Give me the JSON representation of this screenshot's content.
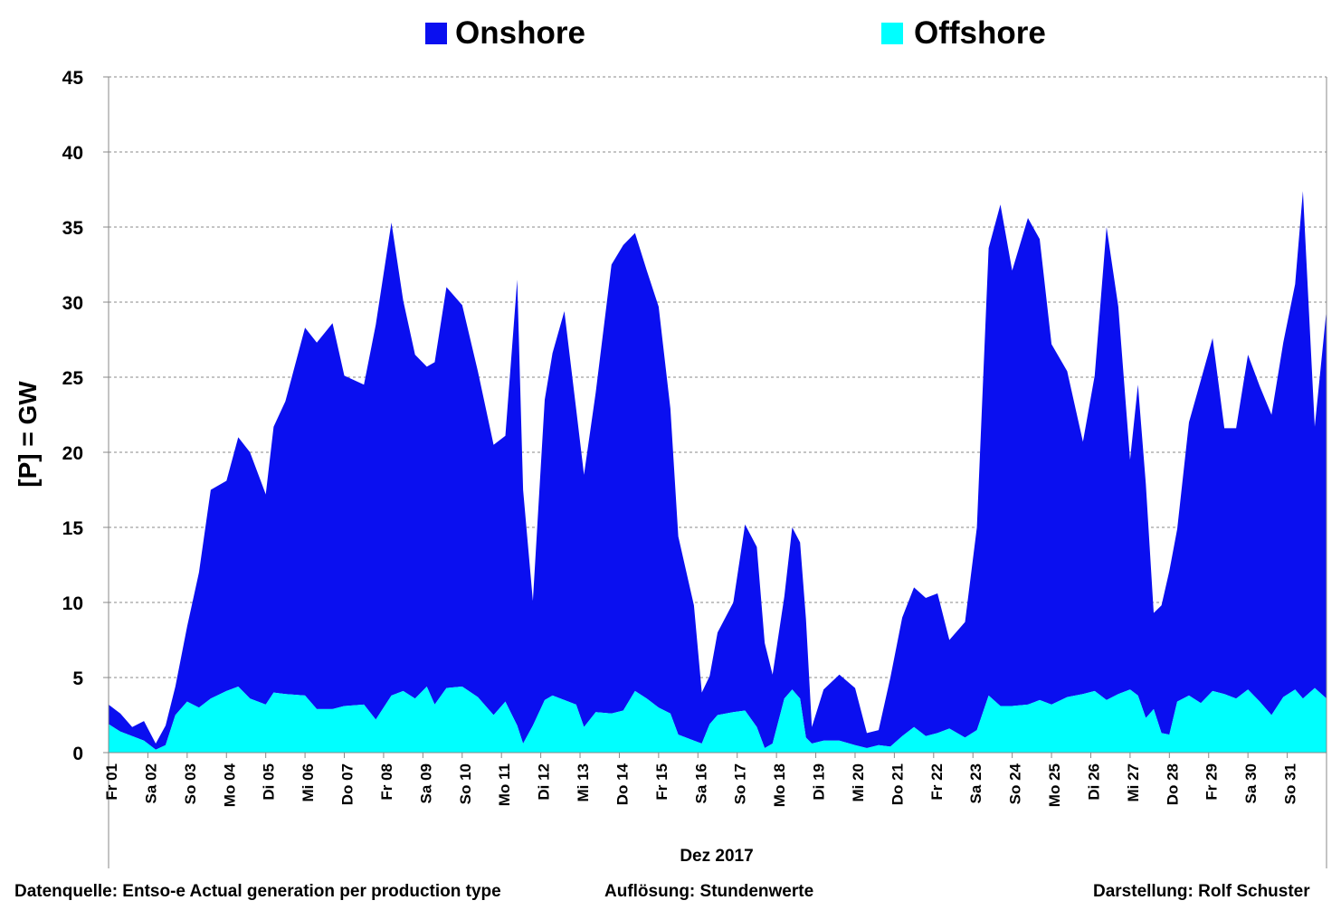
{
  "legend": [
    {
      "label": "Onshore",
      "color": "#0a0ff0"
    },
    {
      "label": "Offshore",
      "color": "#00ffff"
    }
  ],
  "axes": {
    "ylabel": "[P] = GW",
    "xlabel": "Dez 2017",
    "yticks": [
      "0",
      "5",
      "10",
      "15",
      "20",
      "25",
      "30",
      "35",
      "40",
      "45"
    ]
  },
  "footer": {
    "source": "Datenquelle: Entso-e  Actual generation per production type",
    "resolution": "Auflösung: Stundenwerte",
    "author": "Darstellung:  Rolf Schuster"
  },
  "chart_data": {
    "type": "area",
    "stacked": true,
    "x_unit": "days since 2017-12-01 00:00",
    "ylim": [
      0,
      45
    ],
    "xlim": [
      0,
      31
    ],
    "grid": "horizontal dashed",
    "legend_position": "top",
    "day_labels": [
      "Fr 01",
      "Sa 02",
      "So 03",
      "Mo 04",
      "Di 05",
      "Mi 06",
      "Do 07",
      "Fr 08",
      "Sa 09",
      "So 10",
      "Mo 11",
      "Di 12",
      "Mi 13",
      "Do 14",
      "Fr 15",
      "Sa 16",
      "So 17",
      "Mo 18",
      "Di 19",
      "Mi 20",
      "Do 21",
      "Fr 22",
      "Sa 23",
      "So 24",
      "Mo 25",
      "Di 26",
      "Mi 27",
      "Do 28",
      "Fr 29",
      "Sa 30",
      "So 31"
    ],
    "series": [
      {
        "name": "Offshore",
        "color": "#00ffff",
        "points": [
          [
            0,
            1.9
          ],
          [
            0.3,
            1.4
          ],
          [
            0.6,
            1.1
          ],
          [
            0.9,
            0.8
          ],
          [
            1.2,
            0.2
          ],
          [
            1.45,
            0.5
          ],
          [
            1.7,
            2.5
          ],
          [
            2.0,
            3.4
          ],
          [
            2.3,
            3.0
          ],
          [
            2.6,
            3.6
          ],
          [
            3.0,
            4.1
          ],
          [
            3.3,
            4.4
          ],
          [
            3.6,
            3.6
          ],
          [
            4.0,
            3.2
          ],
          [
            4.2,
            4.0
          ],
          [
            4.5,
            3.9
          ],
          [
            5.0,
            3.8
          ],
          [
            5.3,
            2.9
          ],
          [
            5.7,
            2.9
          ],
          [
            6.0,
            3.1
          ],
          [
            6.5,
            3.2
          ],
          [
            6.8,
            2.2
          ],
          [
            7.2,
            3.8
          ],
          [
            7.5,
            4.1
          ],
          [
            7.8,
            3.6
          ],
          [
            8.1,
            4.4
          ],
          [
            8.3,
            3.2
          ],
          [
            8.6,
            4.3
          ],
          [
            9.0,
            4.4
          ],
          [
            9.4,
            3.7
          ],
          [
            9.8,
            2.5
          ],
          [
            10.1,
            3.4
          ],
          [
            10.4,
            1.8
          ],
          [
            10.55,
            0.6
          ],
          [
            10.8,
            1.8
          ],
          [
            11.1,
            3.5
          ],
          [
            11.3,
            3.8
          ],
          [
            11.6,
            3.5
          ],
          [
            11.9,
            3.2
          ],
          [
            12.1,
            1.7
          ],
          [
            12.4,
            2.7
          ],
          [
            12.8,
            2.6
          ],
          [
            13.1,
            2.8
          ],
          [
            13.4,
            4.1
          ],
          [
            13.7,
            3.6
          ],
          [
            14.0,
            3.0
          ],
          [
            14.3,
            2.6
          ],
          [
            14.5,
            1.2
          ],
          [
            14.9,
            0.8
          ],
          [
            15.1,
            0.6
          ],
          [
            15.3,
            1.9
          ],
          [
            15.5,
            2.5
          ],
          [
            15.9,
            2.7
          ],
          [
            16.2,
            2.8
          ],
          [
            16.5,
            1.7
          ],
          [
            16.7,
            0.3
          ],
          [
            16.9,
            0.6
          ],
          [
            17.2,
            3.6
          ],
          [
            17.4,
            4.2
          ],
          [
            17.6,
            3.6
          ],
          [
            17.75,
            1.0
          ],
          [
            17.9,
            0.6
          ],
          [
            18.2,
            0.8
          ],
          [
            18.6,
            0.8
          ],
          [
            19.0,
            0.5
          ],
          [
            19.3,
            0.3
          ],
          [
            19.6,
            0.5
          ],
          [
            19.9,
            0.4
          ],
          [
            20.2,
            1.1
          ],
          [
            20.5,
            1.7
          ],
          [
            20.8,
            1.1
          ],
          [
            21.1,
            1.3
          ],
          [
            21.4,
            1.6
          ],
          [
            21.8,
            1.0
          ],
          [
            22.1,
            1.5
          ],
          [
            22.4,
            3.8
          ],
          [
            22.7,
            3.1
          ],
          [
            23.0,
            3.1
          ],
          [
            23.4,
            3.2
          ],
          [
            23.7,
            3.5
          ],
          [
            24.0,
            3.2
          ],
          [
            24.4,
            3.7
          ],
          [
            24.8,
            3.9
          ],
          [
            25.1,
            4.1
          ],
          [
            25.4,
            3.5
          ],
          [
            25.7,
            3.9
          ],
          [
            26.0,
            4.2
          ],
          [
            26.2,
            3.8
          ],
          [
            26.4,
            2.3
          ],
          [
            26.6,
            2.9
          ],
          [
            26.8,
            1.3
          ],
          [
            27.0,
            1.2
          ],
          [
            27.2,
            3.4
          ],
          [
            27.5,
            3.8
          ],
          [
            27.8,
            3.3
          ],
          [
            28.1,
            4.1
          ],
          [
            28.4,
            3.9
          ],
          [
            28.7,
            3.6
          ],
          [
            29.0,
            4.2
          ],
          [
            29.3,
            3.4
          ],
          [
            29.6,
            2.5
          ],
          [
            29.9,
            3.7
          ],
          [
            30.2,
            4.2
          ],
          [
            30.4,
            3.6
          ],
          [
            30.7,
            4.3
          ],
          [
            31.0,
            3.6
          ]
        ]
      },
      {
        "name": "Onshore",
        "color": "#0a0ff0",
        "points": [
          [
            0,
            1.3
          ],
          [
            0.3,
            1.2
          ],
          [
            0.6,
            0.6
          ],
          [
            0.9,
            1.3
          ],
          [
            1.2,
            0.4
          ],
          [
            1.45,
            1.3
          ],
          [
            1.7,
            1.9
          ],
          [
            2.0,
            5.0
          ],
          [
            2.3,
            9.0
          ],
          [
            2.6,
            13.9
          ],
          [
            3.0,
            14.0
          ],
          [
            3.3,
            16.6
          ],
          [
            3.6,
            16.4
          ],
          [
            4.0,
            14.0
          ],
          [
            4.2,
            17.7
          ],
          [
            4.5,
            19.5
          ],
          [
            5.0,
            24.5
          ],
          [
            5.3,
            24.4
          ],
          [
            5.7,
            25.7
          ],
          [
            6.0,
            22.0
          ],
          [
            6.5,
            21.3
          ],
          [
            6.8,
            26.3
          ],
          [
            7.2,
            31.5
          ],
          [
            7.5,
            26.0
          ],
          [
            7.8,
            22.9
          ],
          [
            8.1,
            21.3
          ],
          [
            8.3,
            22.8
          ],
          [
            8.6,
            26.7
          ],
          [
            9.0,
            25.4
          ],
          [
            9.4,
            21.7
          ],
          [
            9.8,
            18.0
          ],
          [
            10.1,
            17.7
          ],
          [
            10.4,
            29.7
          ],
          [
            10.55,
            16.9
          ],
          [
            10.8,
            8.3
          ],
          [
            11.1,
            20.0
          ],
          [
            11.3,
            22.8
          ],
          [
            11.6,
            25.9
          ],
          [
            11.9,
            19.7
          ],
          [
            12.1,
            16.8
          ],
          [
            12.4,
            21.3
          ],
          [
            12.8,
            29.9
          ],
          [
            13.1,
            31.0
          ],
          [
            13.4,
            30.5
          ],
          [
            13.7,
            28.5
          ],
          [
            14.0,
            26.7
          ],
          [
            14.3,
            20.3
          ],
          [
            14.5,
            13.2
          ],
          [
            14.9,
            9.0
          ],
          [
            15.1,
            3.4
          ],
          [
            15.3,
            3.2
          ],
          [
            15.5,
            5.5
          ],
          [
            15.9,
            7.3
          ],
          [
            16.2,
            12.4
          ],
          [
            16.5,
            12.0
          ],
          [
            16.7,
            7.0
          ],
          [
            16.9,
            4.6
          ],
          [
            17.2,
            6.8
          ],
          [
            17.4,
            10.8
          ],
          [
            17.6,
            10.4
          ],
          [
            17.75,
            7.9
          ],
          [
            17.9,
            1.1
          ],
          [
            18.2,
            3.4
          ],
          [
            18.6,
            4.4
          ],
          [
            19.0,
            3.8
          ],
          [
            19.3,
            1.0
          ],
          [
            19.6,
            1.0
          ],
          [
            19.9,
            4.6
          ],
          [
            20.2,
            7.9
          ],
          [
            20.5,
            9.3
          ],
          [
            20.8,
            9.2
          ],
          [
            21.1,
            9.3
          ],
          [
            21.4,
            5.9
          ],
          [
            21.8,
            7.7
          ],
          [
            22.1,
            13.5
          ],
          [
            22.4,
            29.8
          ],
          [
            22.7,
            33.4
          ],
          [
            23.0,
            29.0
          ],
          [
            23.4,
            32.4
          ],
          [
            23.7,
            30.7
          ],
          [
            24.0,
            24.0
          ],
          [
            24.4,
            21.7
          ],
          [
            24.8,
            16.8
          ],
          [
            25.1,
            21.0
          ],
          [
            25.4,
            31.5
          ],
          [
            25.7,
            25.8
          ],
          [
            26.0,
            15.3
          ],
          [
            26.2,
            20.7
          ],
          [
            26.4,
            15.6
          ],
          [
            26.6,
            6.4
          ],
          [
            26.8,
            8.5
          ],
          [
            27.0,
            10.9
          ],
          [
            27.2,
            11.5
          ],
          [
            27.5,
            18.2
          ],
          [
            27.8,
            21.5
          ],
          [
            28.1,
            23.5
          ],
          [
            28.4,
            17.7
          ],
          [
            28.7,
            18.0
          ],
          [
            29.0,
            22.3
          ],
          [
            29.3,
            21.0
          ],
          [
            29.6,
            20.0
          ],
          [
            29.9,
            23.6
          ],
          [
            30.2,
            27.0
          ],
          [
            30.4,
            33.8
          ],
          [
            30.7,
            17.4
          ],
          [
            31.0,
            25.9
          ]
        ]
      }
    ]
  }
}
